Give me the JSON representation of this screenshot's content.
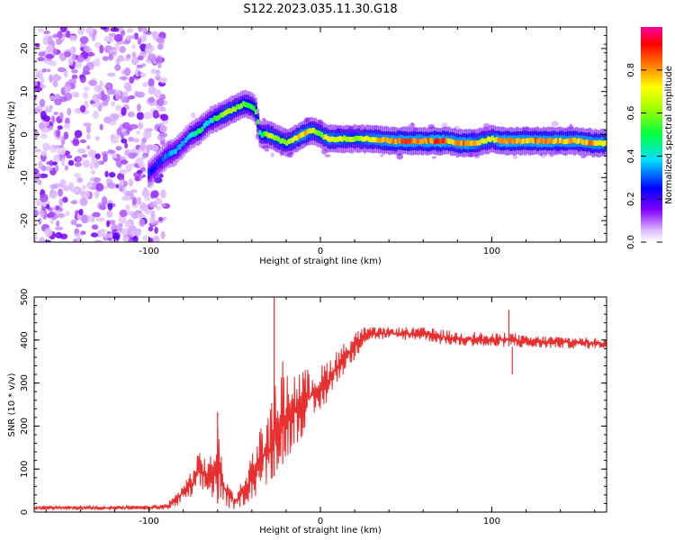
{
  "title": "S122.2023.035.11.30.G18",
  "colors": {
    "snr_line": "#e83030",
    "axis": "#000000"
  },
  "chart_data": [
    {
      "type": "heatmap",
      "title": "S122.2023.035.11.30.G18",
      "xlabel": "Height of straight line (km)",
      "ylabel": "Frequency (Hz)",
      "xlim": [
        -167,
        167
      ],
      "ylim": [
        -25,
        25
      ],
      "x_ticks": [
        -100,
        0,
        100
      ],
      "y_ticks": [
        -20,
        -10,
        0,
        10,
        20
      ],
      "x_tick_labels": [
        "-100",
        "0",
        "100"
      ],
      "y_tick_labels": [
        "-20",
        "-10",
        "0",
        "10",
        "20"
      ],
      "colorbar": {
        "label": "Normalized spectral amplitude",
        "range": [
          0,
          1
        ],
        "ticks": [
          0.0,
          0.2,
          0.4,
          0.6,
          0.8
        ],
        "tick_labels": [
          "0.0",
          "0.2",
          "0.4",
          "0.6",
          "0.8"
        ],
        "colormap": [
          "#ffffff",
          "#8000ff",
          "#0000ff",
          "#00ffff",
          "#00ff00",
          "#ffff00",
          "#ff8000",
          "#ff0000",
          "#ff00a0"
        ]
      },
      "trace": {
        "x": [
          -100,
          -95,
          -90,
          -85,
          -80,
          -75,
          -70,
          -65,
          -60,
          -55,
          -50,
          -45,
          -42,
          -38,
          -35,
          -30,
          -25,
          -20,
          -15,
          -10,
          -5,
          0,
          5,
          10,
          20,
          30,
          40,
          50,
          60,
          70,
          75,
          80,
          85,
          90,
          95,
          100,
          105,
          110,
          120,
          130,
          140,
          150,
          160,
          167
        ],
        "freq": [
          -9,
          -7,
          -5,
          -4,
          -2,
          0,
          1,
          3,
          4,
          5,
          6,
          7,
          7,
          6,
          0,
          0,
          -1,
          -2,
          -1,
          0,
          1,
          0,
          -1,
          -1,
          -1,
          -1,
          -1.5,
          -1.5,
          -1.5,
          -1.5,
          -1.5,
          -2,
          -2,
          -2,
          -1.5,
          -1,
          -1.5,
          -1.5,
          -1.5,
          -1.5,
          -1.5,
          -1.5,
          -2,
          -2
        ],
        "amplitude": [
          0.3,
          0.3,
          0.35,
          0.4,
          0.35,
          0.45,
          0.55,
          0.4,
          0.6,
          0.7,
          0.65,
          0.6,
          0.55,
          0.6,
          0.5,
          0.7,
          0.65,
          0.6,
          0.75,
          0.85,
          0.7,
          0.65,
          0.8,
          0.75,
          0.65,
          0.8,
          0.85,
          0.9,
          0.85,
          0.95,
          0.85,
          0.85,
          0.9,
          0.8,
          0.75,
          0.7,
          0.9,
          0.9,
          0.85,
          0.9,
          0.85,
          0.85,
          0.85,
          0.85
        ]
      },
      "noise_region_x": [
        -167,
        -90
      ]
    },
    {
      "type": "line",
      "xlabel": "Height of straight line (km)",
      "ylabel": "SNR (10 * v/v)",
      "xlim": [
        -167,
        167
      ],
      "ylim": [
        0,
        500
      ],
      "x_ticks": [
        -100,
        0,
        100
      ],
      "y_ticks": [
        0,
        100,
        200,
        300,
        400,
        500
      ],
      "x_tick_labels": [
        "-100",
        "0",
        "100"
      ],
      "y_tick_labels": [
        "0",
        "100",
        "200",
        "300",
        "400",
        "500"
      ],
      "series": [
        {
          "envelope_x": [
            -167,
            -140,
            -120,
            -100,
            -90,
            -85,
            -80,
            -75,
            -70,
            -65,
            -60,
            -55,
            -50,
            -45,
            -40,
            -35,
            -30,
            -25,
            -20,
            -15,
            -10,
            -5,
            0,
            5,
            10,
            15,
            20,
            25,
            30,
            40,
            50,
            60,
            70,
            80,
            90,
            100,
            110,
            120,
            140,
            160,
            167
          ],
          "envelope_low": [
            5,
            5,
            5,
            5,
            5,
            10,
            20,
            30,
            45,
            35,
            20,
            10,
            5,
            15,
            25,
            50,
            60,
            100,
            120,
            150,
            180,
            200,
            230,
            260,
            300,
            330,
            350,
            390,
            400,
            400,
            400,
            400,
            390,
            385,
            385,
            380,
            385,
            380,
            380,
            380,
            380
          ],
          "envelope_high": [
            15,
            15,
            15,
            15,
            20,
            40,
            70,
            100,
            150,
            120,
            200,
            80,
            40,
            80,
            140,
            200,
            230,
            320,
            320,
            330,
            330,
            340,
            340,
            360,
            380,
            400,
            420,
            430,
            430,
            430,
            430,
            430,
            425,
            420,
            420,
            415,
            420,
            410,
            410,
            405,
            405
          ],
          "spikes": [
            [
              -60,
              232
            ],
            [
              -27,
              500
            ],
            [
              -22,
              350
            ],
            [
              110,
              470
            ],
            [
              112,
              320
            ]
          ]
        }
      ]
    }
  ]
}
